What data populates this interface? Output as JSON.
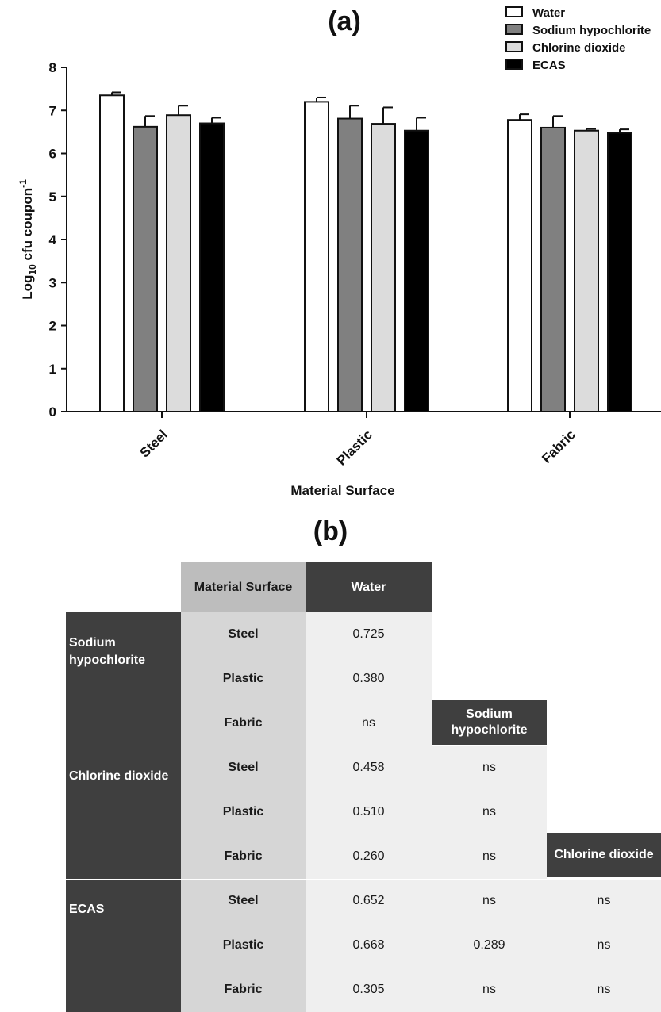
{
  "chart_data": {
    "type": "bar",
    "title": "(a)",
    "xlabel": "Material Surface",
    "ylabel_main": "Log",
    "ylabel_sub": "10",
    "ylabel_rest": " cfu coupon",
    "ylabel_sup": "-1",
    "ylim": [
      0,
      8
    ],
    "yticks": [
      "0",
      "1",
      "2",
      "3",
      "4",
      "5",
      "6",
      "7",
      "8"
    ],
    "categories": [
      "Steel",
      "Plastic",
      "Fabric"
    ],
    "series": [
      {
        "name": "Water",
        "values": [
          7.35,
          7.2,
          6.78
        ],
        "errors": [
          0.07,
          0.1,
          0.13
        ],
        "color": "#ffffff"
      },
      {
        "name": "Sodium hypochlorite",
        "values": [
          6.62,
          6.81,
          6.6
        ],
        "errors": [
          0.25,
          0.3,
          0.27
        ],
        "color": "#808080"
      },
      {
        "name": "Chlorine dioxide",
        "values": [
          6.89,
          6.69,
          6.53
        ],
        "errors": [
          0.22,
          0.38,
          0.04
        ],
        "color": "#dcdcdc"
      },
      {
        "name": "ECAS",
        "values": [
          6.7,
          6.53,
          6.48
        ],
        "errors": [
          0.13,
          0.3,
          0.08
        ],
        "color": "#000000"
      }
    ],
    "legend_position": "top-right",
    "grid": false
  },
  "table": {
    "title": "(b)",
    "header_surface": "Material Surface",
    "header_water": "Water",
    "header_sodium": "Sodium hypochlorite",
    "header_chlorine": "Chlorine dioxide",
    "groups": [
      {
        "label": "Sodium hypochlorite",
        "rows": [
          {
            "surface": "Steel",
            "water": "0.725"
          },
          {
            "surface": "Plastic",
            "water": "0.380"
          },
          {
            "surface": "Fabric",
            "water": "ns"
          }
        ]
      },
      {
        "label": "Chlorine dioxide",
        "rows": [
          {
            "surface": "Steel",
            "water": "0.458",
            "sodium": "ns"
          },
          {
            "surface": "Plastic",
            "water": "0.510",
            "sodium": "ns"
          },
          {
            "surface": "Fabric",
            "water": "0.260",
            "sodium": "ns"
          }
        ]
      },
      {
        "label": "ECAS",
        "rows": [
          {
            "surface": "Steel",
            "water": "0.652",
            "sodium": "ns",
            "chlorine": "ns"
          },
          {
            "surface": "Plastic",
            "water": "0.668",
            "sodium": "0.289",
            "chlorine": "ns"
          },
          {
            "surface": "Fabric",
            "water": "0.305",
            "sodium": "ns",
            "chlorine": "ns"
          }
        ]
      }
    ]
  }
}
